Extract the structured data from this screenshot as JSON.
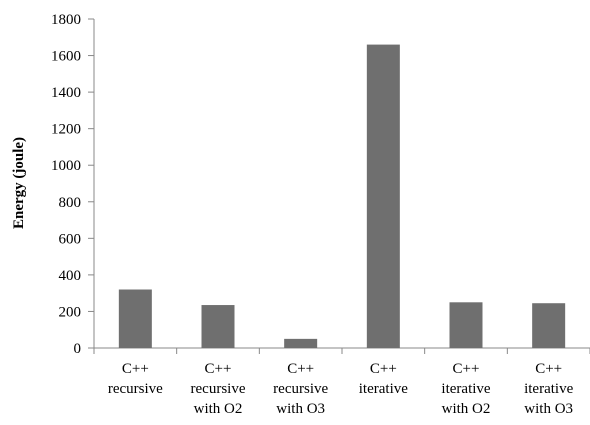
{
  "chart_data": {
    "type": "bar",
    "title": "",
    "xlabel": "",
    "ylabel": "Energy (joule)",
    "ylim": [
      0,
      1800
    ],
    "yticks": [
      0,
      200,
      400,
      600,
      800,
      1000,
      1200,
      1400,
      1600,
      1800
    ],
    "grid": false,
    "legend": "none",
    "categories": [
      [
        "C++",
        "recursive"
      ],
      [
        "C++",
        "recursive",
        "with O2"
      ],
      [
        "C++",
        "recursive",
        "with O3"
      ],
      [
        "C++",
        "iterative"
      ],
      [
        "C++",
        "iterative",
        "with O2"
      ],
      [
        "C++",
        "iterative",
        "with O3"
      ]
    ],
    "values": [
      320,
      235,
      50,
      1660,
      250,
      245
    ],
    "bar_color": "#6f6f6f",
    "axis_color": "#888888"
  }
}
